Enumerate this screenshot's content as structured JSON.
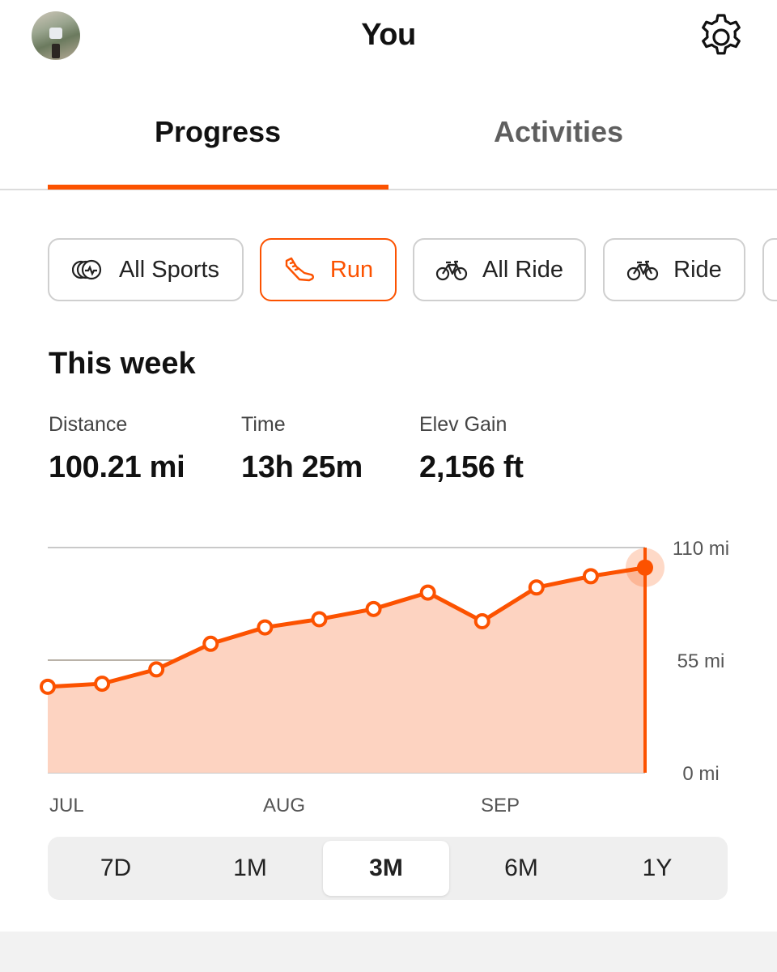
{
  "header": {
    "title": "You",
    "avatar_icon": "user-avatar-photo",
    "settings_icon": "gear-icon"
  },
  "tabs": [
    {
      "label": "Progress",
      "selected": true
    },
    {
      "label": "Activities",
      "selected": false
    }
  ],
  "sport_filters": [
    {
      "label": "All Sports",
      "icon": "all-sports-icon",
      "selected": false
    },
    {
      "label": "Run",
      "icon": "running-shoe-icon",
      "selected": true
    },
    {
      "label": "All Ride",
      "icon": "bike-icon",
      "selected": false
    },
    {
      "label": "Ride",
      "icon": "bike-icon",
      "selected": false
    }
  ],
  "summary": {
    "title": "This week",
    "stats": [
      {
        "label": "Distance",
        "value": "100.21 mi"
      },
      {
        "label": "Time",
        "value": "13h 25m"
      },
      {
        "label": "Elev Gain",
        "value": "2,156 ft"
      }
    ]
  },
  "chart_data": {
    "type": "area",
    "title": "",
    "xlabel": "",
    "ylabel": "",
    "ylim": [
      0,
      110
    ],
    "y_ticks": [
      "110 mi",
      "55 mi",
      "0 mi"
    ],
    "x_ticks": [
      "JUL",
      "AUG",
      "SEP"
    ],
    "x": [
      "JUL wk1",
      "JUL wk2",
      "JUL wk3",
      "JUL wk4",
      "AUG wk1",
      "AUG wk2",
      "AUG wk3",
      "AUG wk4",
      "SEP wk1",
      "SEP wk2",
      "SEP wk3",
      "SEP wk4"
    ],
    "series": [
      {
        "values": [
          42,
          43.5,
          50.5,
          63,
          71,
          75,
          80,
          88,
          74,
          90.5,
          96,
          100.21
        ]
      }
    ],
    "highlighted_point": "last",
    "accent_color": "#fc5200",
    "fill_color": "#fdd3c1",
    "grid": true
  },
  "time_ranges": [
    {
      "label": "7D",
      "selected": false
    },
    {
      "label": "1M",
      "selected": false
    },
    {
      "label": "3M",
      "selected": true
    },
    {
      "label": "6M",
      "selected": false
    },
    {
      "label": "1Y",
      "selected": false
    }
  ]
}
